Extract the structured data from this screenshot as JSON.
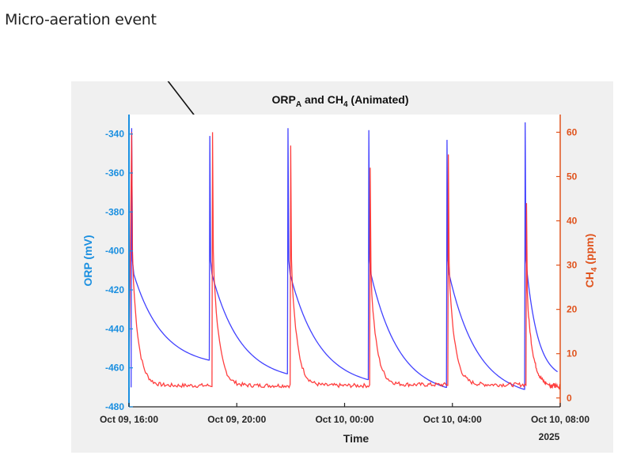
{
  "annotation": {
    "text": "Micro-aeration event"
  },
  "colors": {
    "orp": "#2020ff",
    "ch4": "#ff2a2a",
    "left_axis": "#1a8fe0",
    "right_axis": "#e0531d"
  },
  "chart_data": {
    "type": "line",
    "title": {
      "main1": "ORP",
      "sub1": "A",
      "mid": " and CH",
      "sub2": "4",
      "tail": " (Animated)"
    },
    "xlabel": "Time",
    "x_year_label": "2025",
    "x_ticks": [
      "Oct 09, 16:00",
      "Oct 09, 20:00",
      "Oct 10, 00:00",
      "Oct 10, 04:00",
      "Oct 10, 08:00"
    ],
    "x_tick_hours": [
      16,
      20,
      24,
      28,
      32
    ],
    "xlim_hours": [
      16,
      32
    ],
    "left_axis": {
      "label": "ORP (mV)",
      "ylim": [
        -480,
        -330
      ],
      "ticks": [
        -340,
        -360,
        -380,
        -400,
        -420,
        -440,
        -460,
        -480
      ]
    },
    "right_axis": {
      "label_main": "CH",
      "label_sub": "4",
      "label_tail": " (ppm)",
      "ylim": [
        -2,
        64
      ],
      "ticks": [
        60,
        50,
        40,
        30,
        20,
        10,
        0
      ]
    },
    "grid": false,
    "series": [
      {
        "name": "ORP",
        "axis": "left",
        "peaks": [
          [
            16.1,
            -337
          ],
          [
            19.0,
            -341
          ],
          [
            21.9,
            -337
          ],
          [
            24.9,
            -338
          ],
          [
            27.8,
            -343
          ],
          [
            30.7,
            -334
          ]
        ],
        "troughs": [
          [
            18.95,
            -456
          ],
          [
            21.85,
            -463
          ],
          [
            24.85,
            -466
          ],
          [
            27.75,
            -470
          ],
          [
            30.65,
            -471
          ],
          [
            31.9,
            -462
          ]
        ]
      },
      {
        "name": "CH4",
        "axis": "right",
        "peaks": [
          [
            16.1,
            60
          ],
          [
            19.1,
            60
          ],
          [
            22.0,
            57
          ],
          [
            24.95,
            52
          ],
          [
            27.85,
            55
          ],
          [
            30.75,
            44
          ]
        ],
        "baseline": [
          [
            16.5,
            3.0
          ],
          [
            19.0,
            2.8
          ],
          [
            22.0,
            2.8
          ],
          [
            25.0,
            2.8
          ],
          [
            27.8,
            3.0
          ],
          [
            30.8,
            3.0
          ],
          [
            32.0,
            2.5
          ]
        ]
      }
    ]
  }
}
